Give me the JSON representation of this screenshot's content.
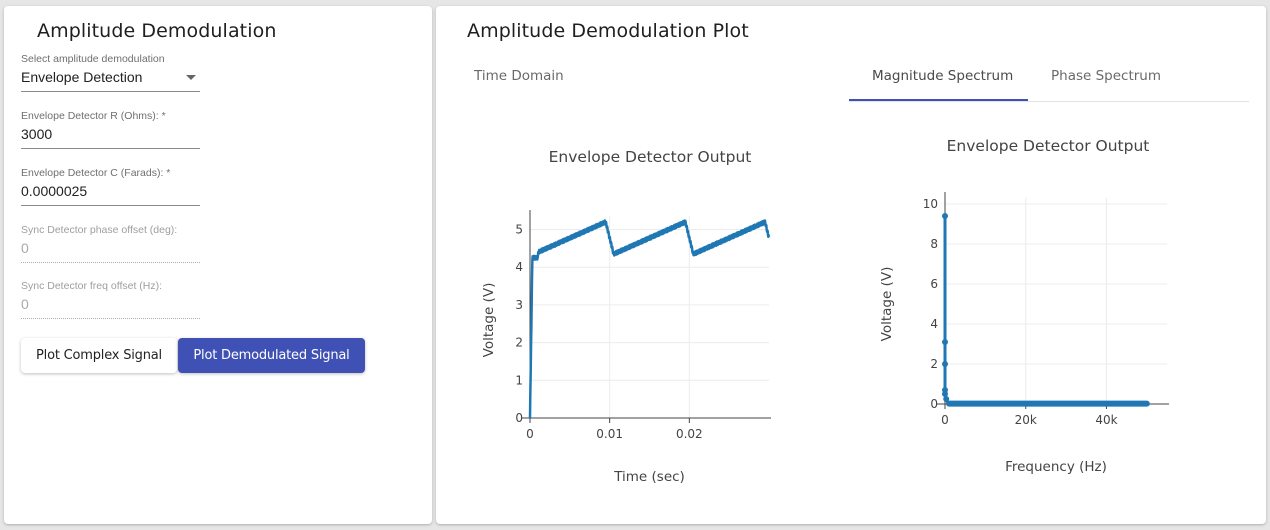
{
  "left_panel": {
    "title": "Amplitude Demodulation",
    "select": {
      "label": "Select amplitude demodulation",
      "value": "Envelope Detection"
    },
    "fields": [
      {
        "label": "Envelope Detector R (Ohms): *",
        "value": "3000"
      },
      {
        "label": "Envelope Detector C (Farads): *",
        "value": "0.0000025"
      },
      {
        "label": "Sync Detector phase offset (deg):",
        "value": "0"
      },
      {
        "label": "Sync Detector freq offset (Hz):",
        "value": "0"
      }
    ],
    "buttons": {
      "plot_complex": "Plot Complex Signal",
      "plot_demodulated": "Plot Demodulated Signal"
    },
    "accent_color": "#3f51b5"
  },
  "right_panel": {
    "title": "Amplitude Demodulation Plot",
    "tabs": {
      "time": "Time Domain",
      "magnitude": "Magnitude Spectrum",
      "phase": "Phase Spectrum"
    },
    "selected_tab": "Magnitude Spectrum"
  },
  "chart_data": [
    {
      "type": "line",
      "title": "Envelope Detector Output",
      "xlabel": "Time (sec)",
      "ylabel": "Voltage (V)",
      "xlim": [
        0,
        0.03
      ],
      "ylim": [
        0,
        5.2
      ],
      "xticks": [
        "0",
        "0.01",
        "0.02"
      ],
      "yticks": [
        "0",
        "1",
        "2",
        "3",
        "4",
        "5"
      ],
      "grid": true,
      "color": "#1f77b4",
      "series": [
        {
          "x": [
            0,
            0.0003,
            0.0005,
            0.001,
            0.005,
            0.0095,
            0.0105,
            0.0195,
            0.0205,
            0.0295,
            0.03
          ],
          "y": [
            0,
            4.3,
            4.2,
            4.3,
            4.75,
            5.2,
            4.35,
            5.2,
            4.35,
            5.2,
            5.1
          ]
        }
      ]
    },
    {
      "type": "line",
      "title": "Envelope Detector Output",
      "xlabel": "Frequency (Hz)",
      "ylabel": "Voltage (V)",
      "xlim": [
        0,
        55000
      ],
      "ylim": [
        0,
        10
      ],
      "xticks": [
        "0",
        "20k",
        "40k"
      ],
      "yticks": [
        "0",
        "2",
        "4",
        "6",
        "8",
        "10"
      ],
      "grid": true,
      "color": "#1f77b4",
      "series": [
        {
          "x": [
            0,
            0,
            0,
            0,
            0,
            300,
            600,
            1000,
            2000,
            5000,
            10000,
            30000,
            50000
          ],
          "y": [
            9.4,
            3.1,
            2.0,
            0.7,
            0.5,
            0.25,
            0.1,
            0.07,
            0.05,
            0.04,
            0.03,
            0.02,
            0.02
          ]
        }
      ]
    }
  ]
}
